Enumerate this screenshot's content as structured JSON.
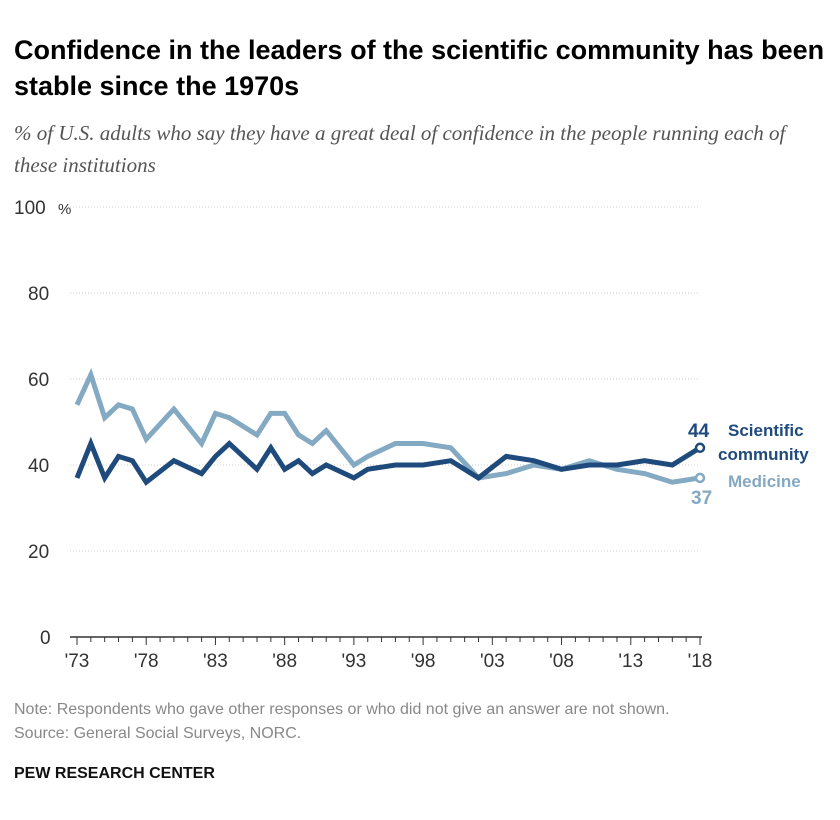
{
  "title": "Confidence in the leaders of the scientific community has been stable since the 1970s",
  "subtitle": "% of U.S. adults who say they have a great deal of confidence in the people running each of these institutions",
  "note": "Note: Respondents who gave other responses or who did not give an answer are not shown.",
  "source": "Source: General Social Surveys, NORC.",
  "brand": "PEW RESEARCH CENTER",
  "chart_data": {
    "type": "line",
    "ylim": [
      0,
      100
    ],
    "yticks": [
      0,
      20,
      40,
      60,
      80,
      100
    ],
    "ytick_labels": [
      "0",
      "20",
      "40",
      "60",
      "80",
      "100%"
    ],
    "xticks": [
      1973,
      1978,
      1983,
      1988,
      1993,
      1998,
      2003,
      2008,
      2013,
      2018
    ],
    "xtick_labels": [
      "'73",
      "'78",
      "'83",
      "'88",
      "'93",
      "'98",
      "'03",
      "'08",
      "'13",
      "'18"
    ],
    "grid": true,
    "x": [
      1973,
      1974,
      1975,
      1976,
      1977,
      1978,
      1980,
      1982,
      1983,
      1984,
      1986,
      1987,
      1988,
      1989,
      1990,
      1991,
      1993,
      1994,
      1996,
      1998,
      2000,
      2002,
      2004,
      2006,
      2008,
      2010,
      2012,
      2014,
      2016,
      2018
    ],
    "series": [
      {
        "name": "Scientific community",
        "label_lines": [
          "Scientific",
          "community"
        ],
        "end_label": "44",
        "color": "#1f4a7c",
        "values": [
          37,
          45,
          37,
          42,
          41,
          36,
          41,
          38,
          42,
          45,
          39,
          44,
          39,
          41,
          38,
          40,
          37,
          39,
          40,
          40,
          41,
          37,
          42,
          41,
          39,
          40,
          40,
          41,
          40,
          44
        ]
      },
      {
        "name": "Medicine",
        "label_lines": [
          "Medicine"
        ],
        "end_label": "37",
        "color": "#84a9c3",
        "values": [
          54,
          61,
          51,
          54,
          53,
          46,
          53,
          45,
          52,
          51,
          47,
          52,
          52,
          47,
          45,
          48,
          40,
          42,
          45,
          45,
          44,
          37,
          38,
          40,
          39,
          41,
          39,
          38,
          36,
          37
        ]
      }
    ]
  }
}
